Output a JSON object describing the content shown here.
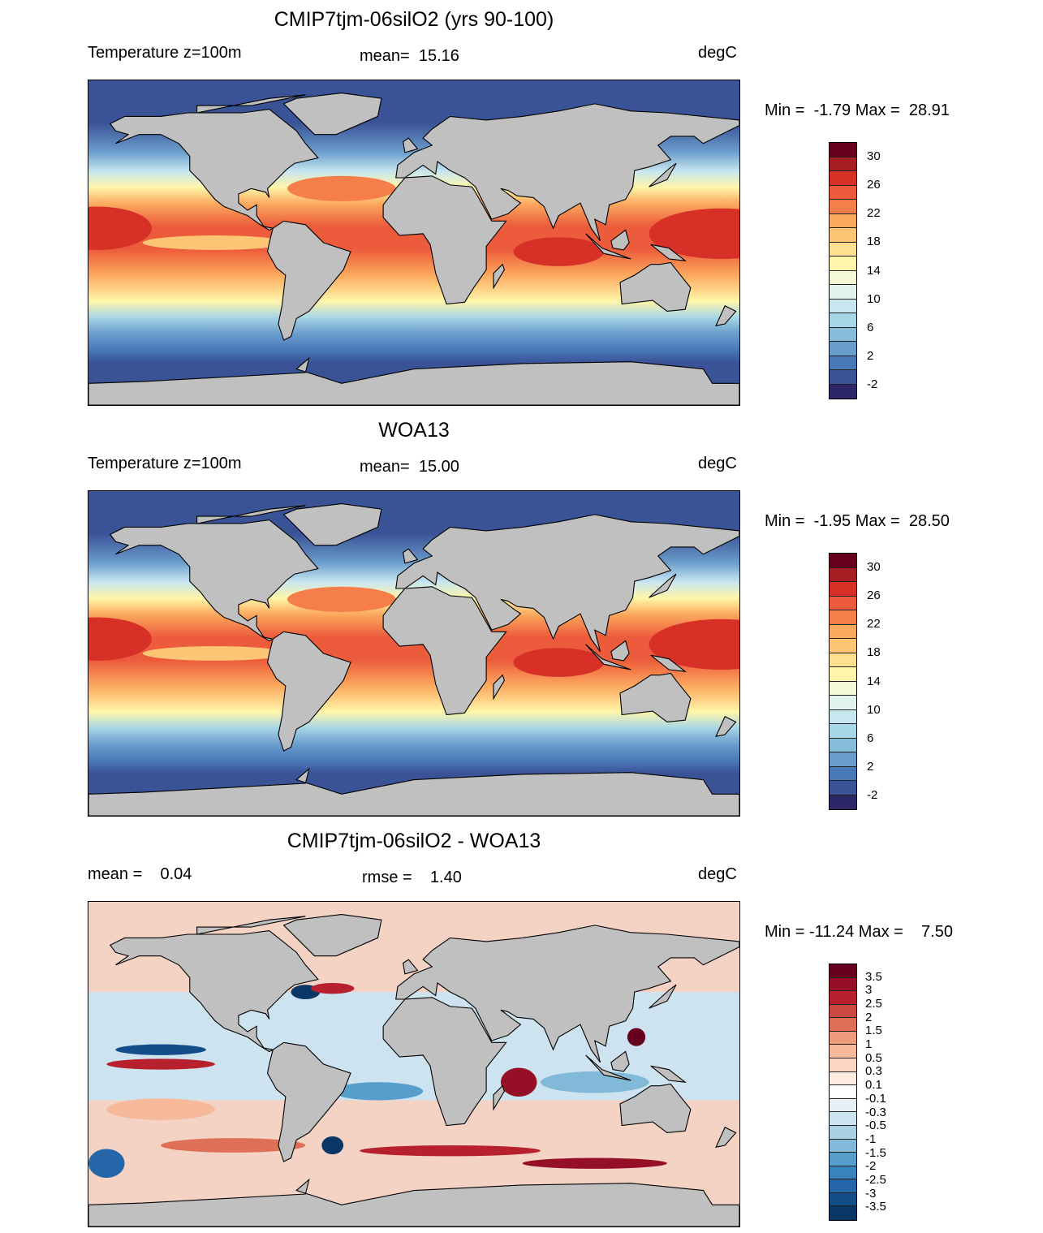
{
  "panels": [
    {
      "title": "CMIP7tjm-06silO2 (yrs 90-100)",
      "left_label": "Temperature z=100m",
      "center_label": "mean=  15.16",
      "units": "degC",
      "minmax": "Min =  -1.79 Max =  28.91",
      "type": "temperature"
    },
    {
      "title": "WOA13",
      "left_label": "Temperature z=100m",
      "center_label": "mean=  15.00",
      "units": "degC",
      "minmax": "Min =  -1.95 Max =  28.50",
      "type": "temperature"
    },
    {
      "title": "CMIP7tjm-06silO2 - WOA13",
      "left_label": "mean =    0.04",
      "center_label": "rmse =    1.40",
      "units": "degC",
      "minmax": "Min = -11.24 Max =    7.50",
      "type": "difference"
    }
  ],
  "temp_colorbar": {
    "labels": [
      "30",
      "26",
      "22",
      "18",
      "14",
      "10",
      "6",
      "2",
      "-2"
    ],
    "colors": [
      "#67001f",
      "#a71d24",
      "#d73027",
      "#ec5b3b",
      "#f67e4b",
      "#fca95e",
      "#fdc574",
      "#fee090",
      "#fff6a9",
      "#f4fad5",
      "#e2f3ef",
      "#c7e6f0",
      "#a7d6e8",
      "#86bcd9",
      "#6a9dcc",
      "#4a79b9",
      "#3a5296",
      "#2d2768"
    ]
  },
  "diff_colorbar": {
    "labels": [
      "3.5",
      "3",
      "2.5",
      "2",
      "1.5",
      "1",
      "0.5",
      "0.3",
      "0.1",
      "-0.1",
      "-0.3",
      "-0.5",
      "-1",
      "-1.5",
      "-2",
      "-2.5",
      "-3",
      "-3.5"
    ],
    "colors": [
      "#67001f",
      "#950f27",
      "#b7212e",
      "#cc4843",
      "#df6f56",
      "#ef9a7b",
      "#f7b99b",
      "#fcd5c0",
      "#feece2",
      "#ffffff",
      "#e6f0f6",
      "#cde3ef",
      "#a9d0e4",
      "#82b9d9",
      "#569ecb",
      "#3a84bd",
      "#2466a8",
      "#144e8a",
      "#0b3767"
    ]
  }
}
